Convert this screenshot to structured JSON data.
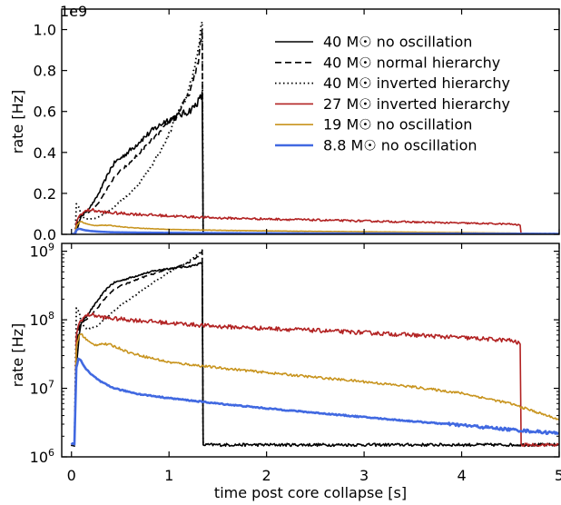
{
  "chart_data": {
    "type": "line",
    "xlabel": "time post core collapse [s]",
    "xlim": [
      -0.1,
      5
    ],
    "x_ticks": [
      0,
      1,
      2,
      3,
      4,
      5
    ],
    "x_tick_labels": [
      "0",
      "1",
      "2",
      "3",
      "4",
      "5"
    ],
    "legend_position": "top-right",
    "panels": [
      {
        "name": "linear",
        "ylabel": "rate [Hz]",
        "yscale": "linear",
        "offset_label": "1e9",
        "ylim": [
          0,
          1.1
        ],
        "y_ticks": [
          0.0,
          0.2,
          0.4,
          0.6,
          0.8,
          1.0
        ],
        "y_tick_labels": [
          "0.0",
          "0.2",
          "0.4",
          "0.6",
          "0.8",
          "1.0"
        ]
      },
      {
        "name": "log",
        "ylabel": "rate [Hz]",
        "yscale": "log",
        "ylim": [
          1000000,
          1300000000
        ],
        "y_ticks": [
          1000000,
          10000000,
          100000000,
          1000000000
        ],
        "y_tick_labels": [
          "10^6",
          "10^7",
          "10^8",
          "10^9"
        ]
      }
    ],
    "series": [
      {
        "name": "40 M☉ no oscillation",
        "color": "#000000",
        "dash": "solid",
        "width": 1.6,
        "noise": 0.03,
        "x": [
          0,
          0.03,
          0.05,
          0.08,
          0.1,
          0.15,
          0.2,
          0.25,
          0.3,
          0.35,
          0.4,
          0.45,
          0.5,
          0.55,
          0.6,
          0.65,
          0.7,
          0.75,
          0.8,
          0.85,
          0.9,
          0.95,
          1.0,
          1.05,
          1.1,
          1.15,
          1.2,
          1.25,
          1.3,
          1.34,
          1.35,
          1.36,
          1.5,
          2.0,
          2.5,
          3.0,
          3.5,
          4.0,
          4.5,
          5.0
        ],
        "y": [
          1500000,
          1500000,
          20000000,
          60000000,
          90000000,
          110000000,
          140000000,
          175000000,
          220000000,
          270000000,
          320000000,
          355000000,
          370000000,
          390000000,
          410000000,
          430000000,
          455000000,
          475000000,
          495000000,
          515000000,
          530000000,
          550000000,
          560000000,
          570000000,
          580000000,
          590000000,
          600000000,
          620000000,
          650000000,
          680000000,
          1500000,
          1500000,
          1500000,
          1500000,
          1500000,
          1500000,
          1500000,
          1500000,
          1500000,
          1500000
        ]
      },
      {
        "name": "40 M☉ normal hierarchy",
        "color": "#000000",
        "dash": "7,4",
        "width": 1.6,
        "noise": 0.02,
        "x": [
          0,
          0.03,
          0.05,
          0.08,
          0.1,
          0.15,
          0.2,
          0.25,
          0.3,
          0.35,
          0.4,
          0.45,
          0.5,
          0.55,
          0.6,
          0.65,
          0.7,
          0.75,
          0.8,
          0.85,
          0.9,
          0.95,
          1.0,
          1.05,
          1.1,
          1.15,
          1.2,
          1.25,
          1.3,
          1.34,
          1.35
        ],
        "y": [
          1500000,
          1500000,
          40000000,
          80000000,
          90000000,
          100000000,
          115000000,
          140000000,
          170000000,
          210000000,
          250000000,
          285000000,
          310000000,
          330000000,
          350000000,
          375000000,
          400000000,
          425000000,
          450000000,
          470000000,
          495000000,
          520000000,
          545000000,
          570000000,
          600000000,
          640000000,
          680000000,
          750000000,
          850000000,
          1000000000,
          1500000
        ]
      },
      {
        "name": "40 M☉ inverted hierarchy",
        "color": "#000000",
        "dash": "1.5,3",
        "width": 1.8,
        "noise": 0.02,
        "x": [
          0,
          0.03,
          0.05,
          0.08,
          0.1,
          0.15,
          0.2,
          0.25,
          0.3,
          0.35,
          0.4,
          0.45,
          0.5,
          0.55,
          0.6,
          0.65,
          0.7,
          0.75,
          0.8,
          0.85,
          0.9,
          0.95,
          1.0,
          1.05,
          1.1,
          1.15,
          1.2,
          1.25,
          1.3,
          1.34,
          1.35
        ],
        "y": [
          1500000,
          1500000,
          150000000,
          130000000,
          90000000,
          75000000,
          75000000,
          80000000,
          90000000,
          105000000,
          120000000,
          140000000,
          160000000,
          180000000,
          200000000,
          225000000,
          255000000,
          285000000,
          320000000,
          360000000,
          400000000,
          440000000,
          490000000,
          550000000,
          600000000,
          640000000,
          700000000,
          800000000,
          900000000,
          1050000000,
          1500000
        ]
      },
      {
        "name": "27 M☉ inverted hierarchy",
        "color": "#b22222",
        "dash": "solid",
        "width": 1.6,
        "noise": 0.07,
        "x": [
          0,
          0.03,
          0.05,
          0.08,
          0.1,
          0.15,
          0.2,
          0.3,
          0.4,
          0.6,
          0.8,
          1.0,
          1.5,
          2.0,
          2.5,
          3.0,
          3.5,
          4.0,
          4.5,
          4.6,
          4.61,
          4.7,
          5.0
        ],
        "y": [
          1500000,
          1500000,
          60000000,
          90000000,
          100000000,
          115000000,
          120000000,
          110000000,
          105000000,
          100000000,
          95000000,
          90000000,
          80000000,
          75000000,
          70000000,
          65000000,
          60000000,
          55000000,
          50000000,
          45000000,
          1500000,
          1500000,
          1500000
        ]
      },
      {
        "name": "19 M☉ no oscillation",
        "color": "#c8941e",
        "dash": "solid",
        "width": 1.6,
        "noise": 0.04,
        "x": [
          0,
          0.03,
          0.05,
          0.08,
          0.1,
          0.12,
          0.15,
          0.2,
          0.25,
          0.3,
          0.4,
          0.5,
          0.6,
          0.8,
          1.0,
          1.5,
          2.0,
          2.5,
          3.0,
          3.5,
          4.0,
          4.5,
          5.0
        ],
        "y": [
          1500000,
          1500000,
          40000000,
          60000000,
          62000000,
          58000000,
          52000000,
          45000000,
          43000000,
          45000000,
          43000000,
          38000000,
          33000000,
          28000000,
          24000000,
          20000000,
          17000000,
          14500000,
          12500000,
          10500000,
          8500000,
          6000000,
          3500000
        ]
      },
      {
        "name": "8.8 M☉ no oscillation",
        "color": "#4169e1",
        "dash": "solid",
        "width": 2.6,
        "noise": 0.02,
        "x": [
          0,
          0.03,
          0.05,
          0.07,
          0.1,
          0.15,
          0.2,
          0.3,
          0.4,
          0.5,
          0.7,
          1.0,
          1.5,
          2.0,
          2.5,
          3.0,
          3.5,
          4.0,
          4.5,
          5.0
        ],
        "y": [
          1500000,
          1500000,
          20000000,
          27000000,
          25000000,
          19000000,
          16000000,
          12500000,
          10500000,
          9500000,
          8200000,
          7200000,
          6000000,
          5100000,
          4400000,
          3800000,
          3300000,
          2900000,
          2500000,
          2200000
        ]
      }
    ]
  }
}
